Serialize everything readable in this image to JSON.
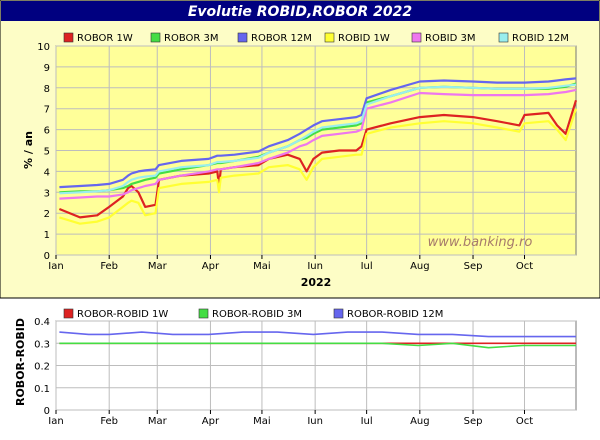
{
  "title": "Evolutie ROBID,ROBOR 2022",
  "watermark": "www.banking.ro",
  "colors": {
    "title_bar": "#000080",
    "plot_bg": "#ffff99",
    "panel_bg": "#fdfdc6",
    "grid": "#bdbdbd",
    "robor_1w": "#dd2222",
    "robor_3m": "#44dd44",
    "robor_12m": "#6666ee",
    "robid_1w": "#ffff33",
    "robid_3m": "#ee77ee",
    "robid_12m": "#99eeee"
  },
  "chart_data": [
    {
      "type": "line",
      "title": "Evolutie ROBID,ROBOR 2022",
      "xlabel": "2022",
      "ylabel": "% / an",
      "ylim": [
        0,
        10
      ],
      "xlim": [
        "2022-01-01",
        "2022-10-31"
      ],
      "x_ticks": [
        "Ian",
        "Feb",
        "Mar",
        "Apr",
        "Mai",
        "Iun",
        "Iul",
        "Aug",
        "Sep",
        "Oct"
      ],
      "y_ticks": [
        "0",
        "1",
        "2",
        "3",
        "4",
        "5",
        "6",
        "7",
        "8",
        "9",
        "10"
      ],
      "grid": true,
      "legend_position": "top",
      "x_dates": [
        "2022-01-03",
        "2022-01-15",
        "2022-01-25",
        "2022-02-01",
        "2022-02-09",
        "2022-02-12",
        "2022-02-14",
        "2022-02-18",
        "2022-02-22",
        "2022-02-28",
        "2022-03-02",
        "2022-03-15",
        "2022-03-31",
        "2022-04-05",
        "2022-04-06",
        "2022-04-07",
        "2022-04-15",
        "2022-04-29",
        "2022-05-05",
        "2022-05-16",
        "2022-05-23",
        "2022-05-27",
        "2022-05-31",
        "2022-06-05",
        "2022-06-15",
        "2022-06-25",
        "2022-06-28",
        "2022-07-01",
        "2022-07-15",
        "2022-08-01",
        "2022-08-15",
        "2022-09-01",
        "2022-09-15",
        "2022-09-28",
        "2022-10-01",
        "2022-10-15",
        "2022-10-20",
        "2022-10-25",
        "2022-10-31"
      ],
      "series": [
        {
          "name": "ROBOR 1W",
          "values": [
            2.2,
            1.8,
            1.9,
            2.3,
            2.8,
            3.2,
            3.3,
            3.0,
            2.3,
            2.4,
            3.6,
            3.8,
            3.9,
            4.0,
            3.3,
            4.1,
            4.2,
            4.3,
            4.6,
            4.8,
            4.6,
            4.0,
            4.6,
            4.9,
            5.0,
            5.0,
            5.2,
            6.0,
            6.3,
            6.6,
            6.7,
            6.6,
            6.4,
            6.2,
            6.7,
            6.8,
            6.2,
            5.8,
            7.4
          ]
        },
        {
          "name": "ROBOR 3M",
          "values": [
            3.0,
            3.05,
            3.05,
            3.1,
            3.2,
            3.3,
            3.4,
            3.5,
            3.6,
            3.7,
            3.9,
            4.1,
            4.3,
            4.4,
            4.4,
            4.4,
            4.5,
            4.7,
            4.9,
            5.2,
            5.5,
            5.6,
            5.8,
            6.0,
            6.1,
            6.2,
            6.3,
            7.3,
            7.6,
            8.0,
            8.05,
            8.0,
            7.95,
            7.95,
            7.95,
            7.95,
            8.0,
            8.05,
            8.2
          ]
        },
        {
          "name": "ROBOR 12M",
          "values": [
            3.25,
            3.3,
            3.35,
            3.4,
            3.6,
            3.8,
            3.9,
            4.0,
            4.05,
            4.1,
            4.3,
            4.5,
            4.6,
            4.75,
            4.75,
            4.75,
            4.8,
            4.95,
            5.2,
            5.5,
            5.8,
            6.0,
            6.2,
            6.4,
            6.5,
            6.6,
            6.7,
            7.5,
            7.9,
            8.3,
            8.35,
            8.3,
            8.25,
            8.25,
            8.25,
            8.3,
            8.35,
            8.4,
            8.45
          ]
        },
        {
          "name": "ROBID 1W",
          "values": [
            1.8,
            1.5,
            1.6,
            1.8,
            2.3,
            2.5,
            2.6,
            2.5,
            1.9,
            2.0,
            3.2,
            3.4,
            3.5,
            3.6,
            3.0,
            3.7,
            3.8,
            3.9,
            4.2,
            4.3,
            4.1,
            3.6,
            4.2,
            4.6,
            4.7,
            4.8,
            4.8,
            5.8,
            6.1,
            6.3,
            6.4,
            6.3,
            6.1,
            5.9,
            6.3,
            6.4,
            6.0,
            5.5,
            7.0
          ]
        },
        {
          "name": "ROBID 3M",
          "values": [
            2.7,
            2.75,
            2.8,
            2.8,
            2.9,
            3.0,
            3.1,
            3.2,
            3.3,
            3.4,
            3.6,
            3.8,
            4.0,
            4.1,
            4.1,
            4.1,
            4.2,
            4.4,
            4.6,
            4.9,
            5.2,
            5.3,
            5.5,
            5.7,
            5.8,
            5.9,
            6.0,
            7.0,
            7.3,
            7.75,
            7.7,
            7.65,
            7.65,
            7.65,
            7.65,
            7.7,
            7.75,
            7.8,
            7.9
          ]
        },
        {
          "name": "ROBID 12M",
          "values": [
            2.95,
            3.0,
            3.05,
            3.1,
            3.3,
            3.5,
            3.6,
            3.7,
            3.75,
            3.8,
            4.0,
            4.2,
            4.3,
            4.45,
            4.45,
            4.45,
            4.5,
            4.65,
            4.9,
            5.2,
            5.5,
            5.7,
            5.9,
            6.1,
            6.2,
            6.3,
            6.4,
            7.2,
            7.6,
            8.0,
            8.05,
            8.0,
            7.95,
            7.95,
            7.95,
            8.0,
            8.05,
            8.1,
            8.15
          ]
        }
      ]
    },
    {
      "type": "line",
      "ylabel": "ROBOR-ROBID",
      "ylim": [
        0,
        0.4
      ],
      "xlim": [
        "2022-01-01",
        "2022-10-31"
      ],
      "x_ticks": [
        "Ian",
        "Feb",
        "Mar",
        "Apr",
        "Mai",
        "Iun",
        "Iul",
        "Aug",
        "Sep",
        "Oct"
      ],
      "y_ticks": [
        "0",
        "0.1",
        "0.2",
        "0.3",
        "0.4"
      ],
      "grid": true,
      "legend_position": "top",
      "x_dates": [
        "2022-01-03",
        "2022-01-20",
        "2022-02-01",
        "2022-02-20",
        "2022-03-10",
        "2022-03-31",
        "2022-04-20",
        "2022-05-10",
        "2022-05-31",
        "2022-06-20",
        "2022-07-10",
        "2022-07-31",
        "2022-08-20",
        "2022-09-10",
        "2022-09-30",
        "2022-10-15",
        "2022-10-31"
      ],
      "series": [
        {
          "name": "ROBOR-ROBID 1W",
          "values": [
            0.3,
            0.3,
            0.3,
            0.3,
            0.3,
            0.3,
            0.3,
            0.3,
            0.3,
            0.3,
            0.3,
            0.3,
            0.3,
            0.3,
            0.3,
            0.3,
            0.3
          ]
        },
        {
          "name": "ROBOR-ROBID 3M",
          "values": [
            0.3,
            0.3,
            0.3,
            0.3,
            0.3,
            0.3,
            0.3,
            0.3,
            0.3,
            0.3,
            0.3,
            0.29,
            0.3,
            0.28,
            0.29,
            0.29,
            0.29
          ]
        },
        {
          "name": "ROBOR-ROBID 12M",
          "values": [
            0.35,
            0.34,
            0.34,
            0.35,
            0.34,
            0.34,
            0.35,
            0.35,
            0.34,
            0.35,
            0.35,
            0.34,
            0.34,
            0.33,
            0.33,
            0.33,
            0.33
          ]
        }
      ]
    }
  ]
}
